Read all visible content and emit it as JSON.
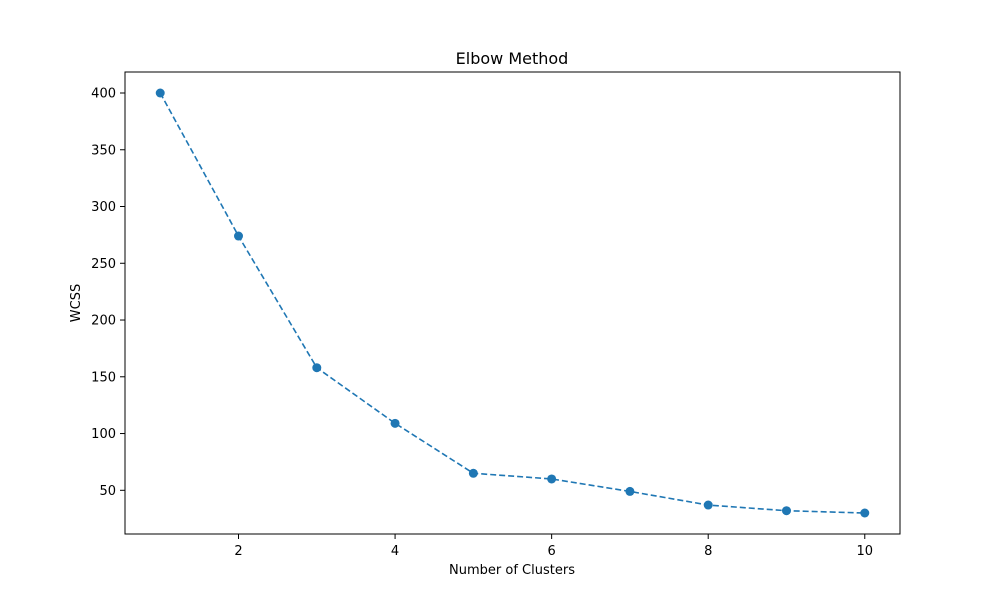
{
  "chart_data": {
    "type": "line",
    "title": "Elbow Method",
    "xlabel": "Number of Clusters",
    "ylabel": "WCSS",
    "x": [
      1,
      2,
      3,
      4,
      5,
      6,
      7,
      8,
      9,
      10
    ],
    "series": [
      {
        "values": [
          400,
          274,
          158,
          109,
          65,
          60,
          49,
          37,
          32,
          30
        ],
        "color": "#1f77b4",
        "line_style": "dashed",
        "marker": "circle"
      }
    ],
    "xlim": [
      0.55,
      10.45
    ],
    "ylim": [
      11.5,
      418.5
    ],
    "xticks": [
      2,
      4,
      6,
      8,
      10
    ],
    "yticks": [
      50,
      100,
      150,
      200,
      250,
      300,
      350,
      400
    ],
    "grid": false,
    "legend": "none"
  }
}
